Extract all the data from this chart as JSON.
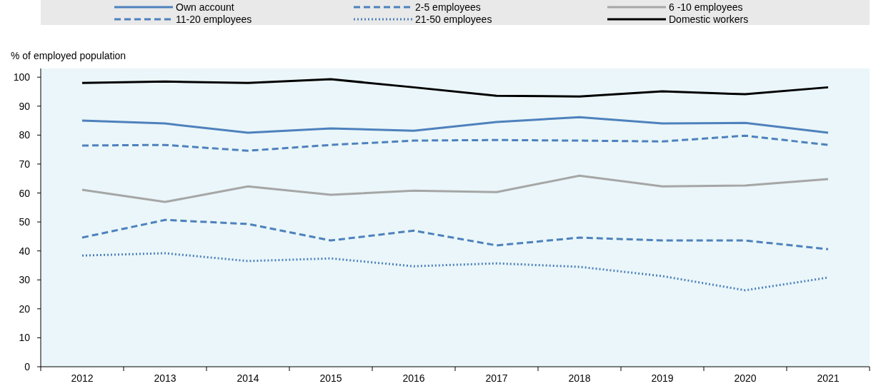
{
  "chart_data": {
    "type": "line",
    "ylabel": "% of employed population",
    "categories": [
      "2012",
      "2013",
      "2014",
      "2015",
      "2016",
      "2017",
      "2018",
      "2019",
      "2020",
      "2021"
    ],
    "ylim": [
      0,
      103
    ],
    "yticks": [
      0,
      10,
      20,
      30,
      40,
      50,
      60,
      70,
      80,
      90,
      100
    ],
    "grid": false,
    "legend": "top",
    "marker": "none",
    "series": [
      {
        "name": "Own account",
        "color": "#4e81bd",
        "line_style": "solid",
        "values": [
          85.0,
          84.0,
          80.8,
          82.3,
          81.5,
          84.5,
          86.2,
          84.0,
          84.2,
          80.8
        ]
      },
      {
        "name": "2-5 employees",
        "color": "#4e81bd",
        "line_style": "dashed",
        "values": [
          76.4,
          76.6,
          74.6,
          76.6,
          78.1,
          78.3,
          78.1,
          77.8,
          79.8,
          76.6
        ]
      },
      {
        "name": "6 -10 employees",
        "color": "#a6a6a6",
        "line_style": "solid",
        "values": [
          61.1,
          56.9,
          62.3,
          59.4,
          60.8,
          60.3,
          66.0,
          62.3,
          62.6,
          64.8
        ]
      },
      {
        "name": "11-20 employees",
        "color": "#4e81bd",
        "line_style": "dashed",
        "values": [
          44.6,
          50.7,
          49.3,
          43.6,
          47.0,
          41.9,
          44.6,
          43.6,
          43.6,
          40.6
        ]
      },
      {
        "name": "21-50 employees",
        "color": "#4e81bd",
        "line_style": "dotted",
        "values": [
          38.4,
          39.2,
          36.5,
          37.4,
          34.7,
          35.7,
          34.5,
          31.3,
          26.4,
          30.8
        ]
      },
      {
        "name": "Domestic workers",
        "color": "#000000",
        "line_style": "solid",
        "values": [
          98.0,
          98.5,
          98.0,
          99.3,
          96.5,
          93.6,
          93.3,
          95.1,
          94.1,
          96.5
        ]
      }
    ]
  }
}
